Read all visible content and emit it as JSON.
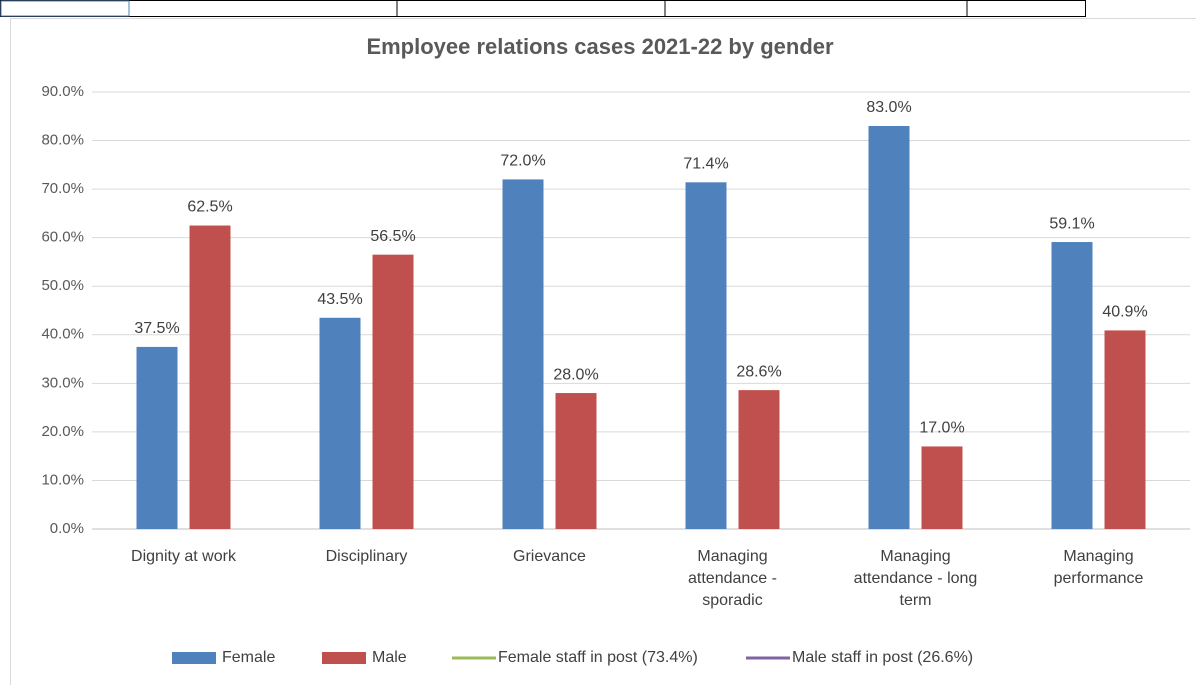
{
  "chart_data": {
    "type": "bar",
    "title": "Employee relations cases 2021-22 by gender",
    "categories": [
      "Dignity at work",
      "Disciplinary",
      "Grievance",
      "Managing attendance - sporadic",
      "Managing attendance - long term",
      "Managing performance"
    ],
    "series": [
      {
        "name": "Female",
        "color": "#4f81bd",
        "values": [
          37.5,
          43.5,
          72.0,
          71.4,
          83.0,
          59.1
        ],
        "value_labels": [
          "37.5%",
          "43.5%",
          "72.0%",
          "71.4%",
          "83.0%",
          "59.1%"
        ]
      },
      {
        "name": "Male",
        "color": "#c0504d",
        "values": [
          62.5,
          56.5,
          28.0,
          28.6,
          17.0,
          40.9
        ],
        "value_labels": [
          "62.5%",
          "56.5%",
          "28.0%",
          "28.6%",
          "17.0%",
          "40.9%"
        ]
      },
      {
        "name": "Female staff in post (73.4%)",
        "color": "#9bbb59",
        "type": "line",
        "values": [
          null,
          null,
          null,
          null,
          null,
          null
        ]
      },
      {
        "name": "Male staff in post (26.6%)",
        "color": "#8064a2",
        "type": "line",
        "values": [
          null,
          null,
          null,
          null,
          null,
          null
        ]
      }
    ],
    "ylim": [
      0,
      90
    ],
    "yticks": [
      {
        "value": 0,
        "label": "0.0%"
      },
      {
        "value": 10,
        "label": "10.0%"
      },
      {
        "value": 20,
        "label": "20.0%"
      },
      {
        "value": 30,
        "label": "30.0%"
      },
      {
        "value": 40,
        "label": "40.0%"
      },
      {
        "value": 50,
        "label": "50.0%"
      },
      {
        "value": 60,
        "label": "60.0%"
      },
      {
        "value": 70,
        "label": "70.0%"
      },
      {
        "value": 80,
        "label": "80.0%"
      },
      {
        "value": 90,
        "label": "90.0%"
      }
    ],
    "grid": true,
    "legend": "bottom"
  }
}
